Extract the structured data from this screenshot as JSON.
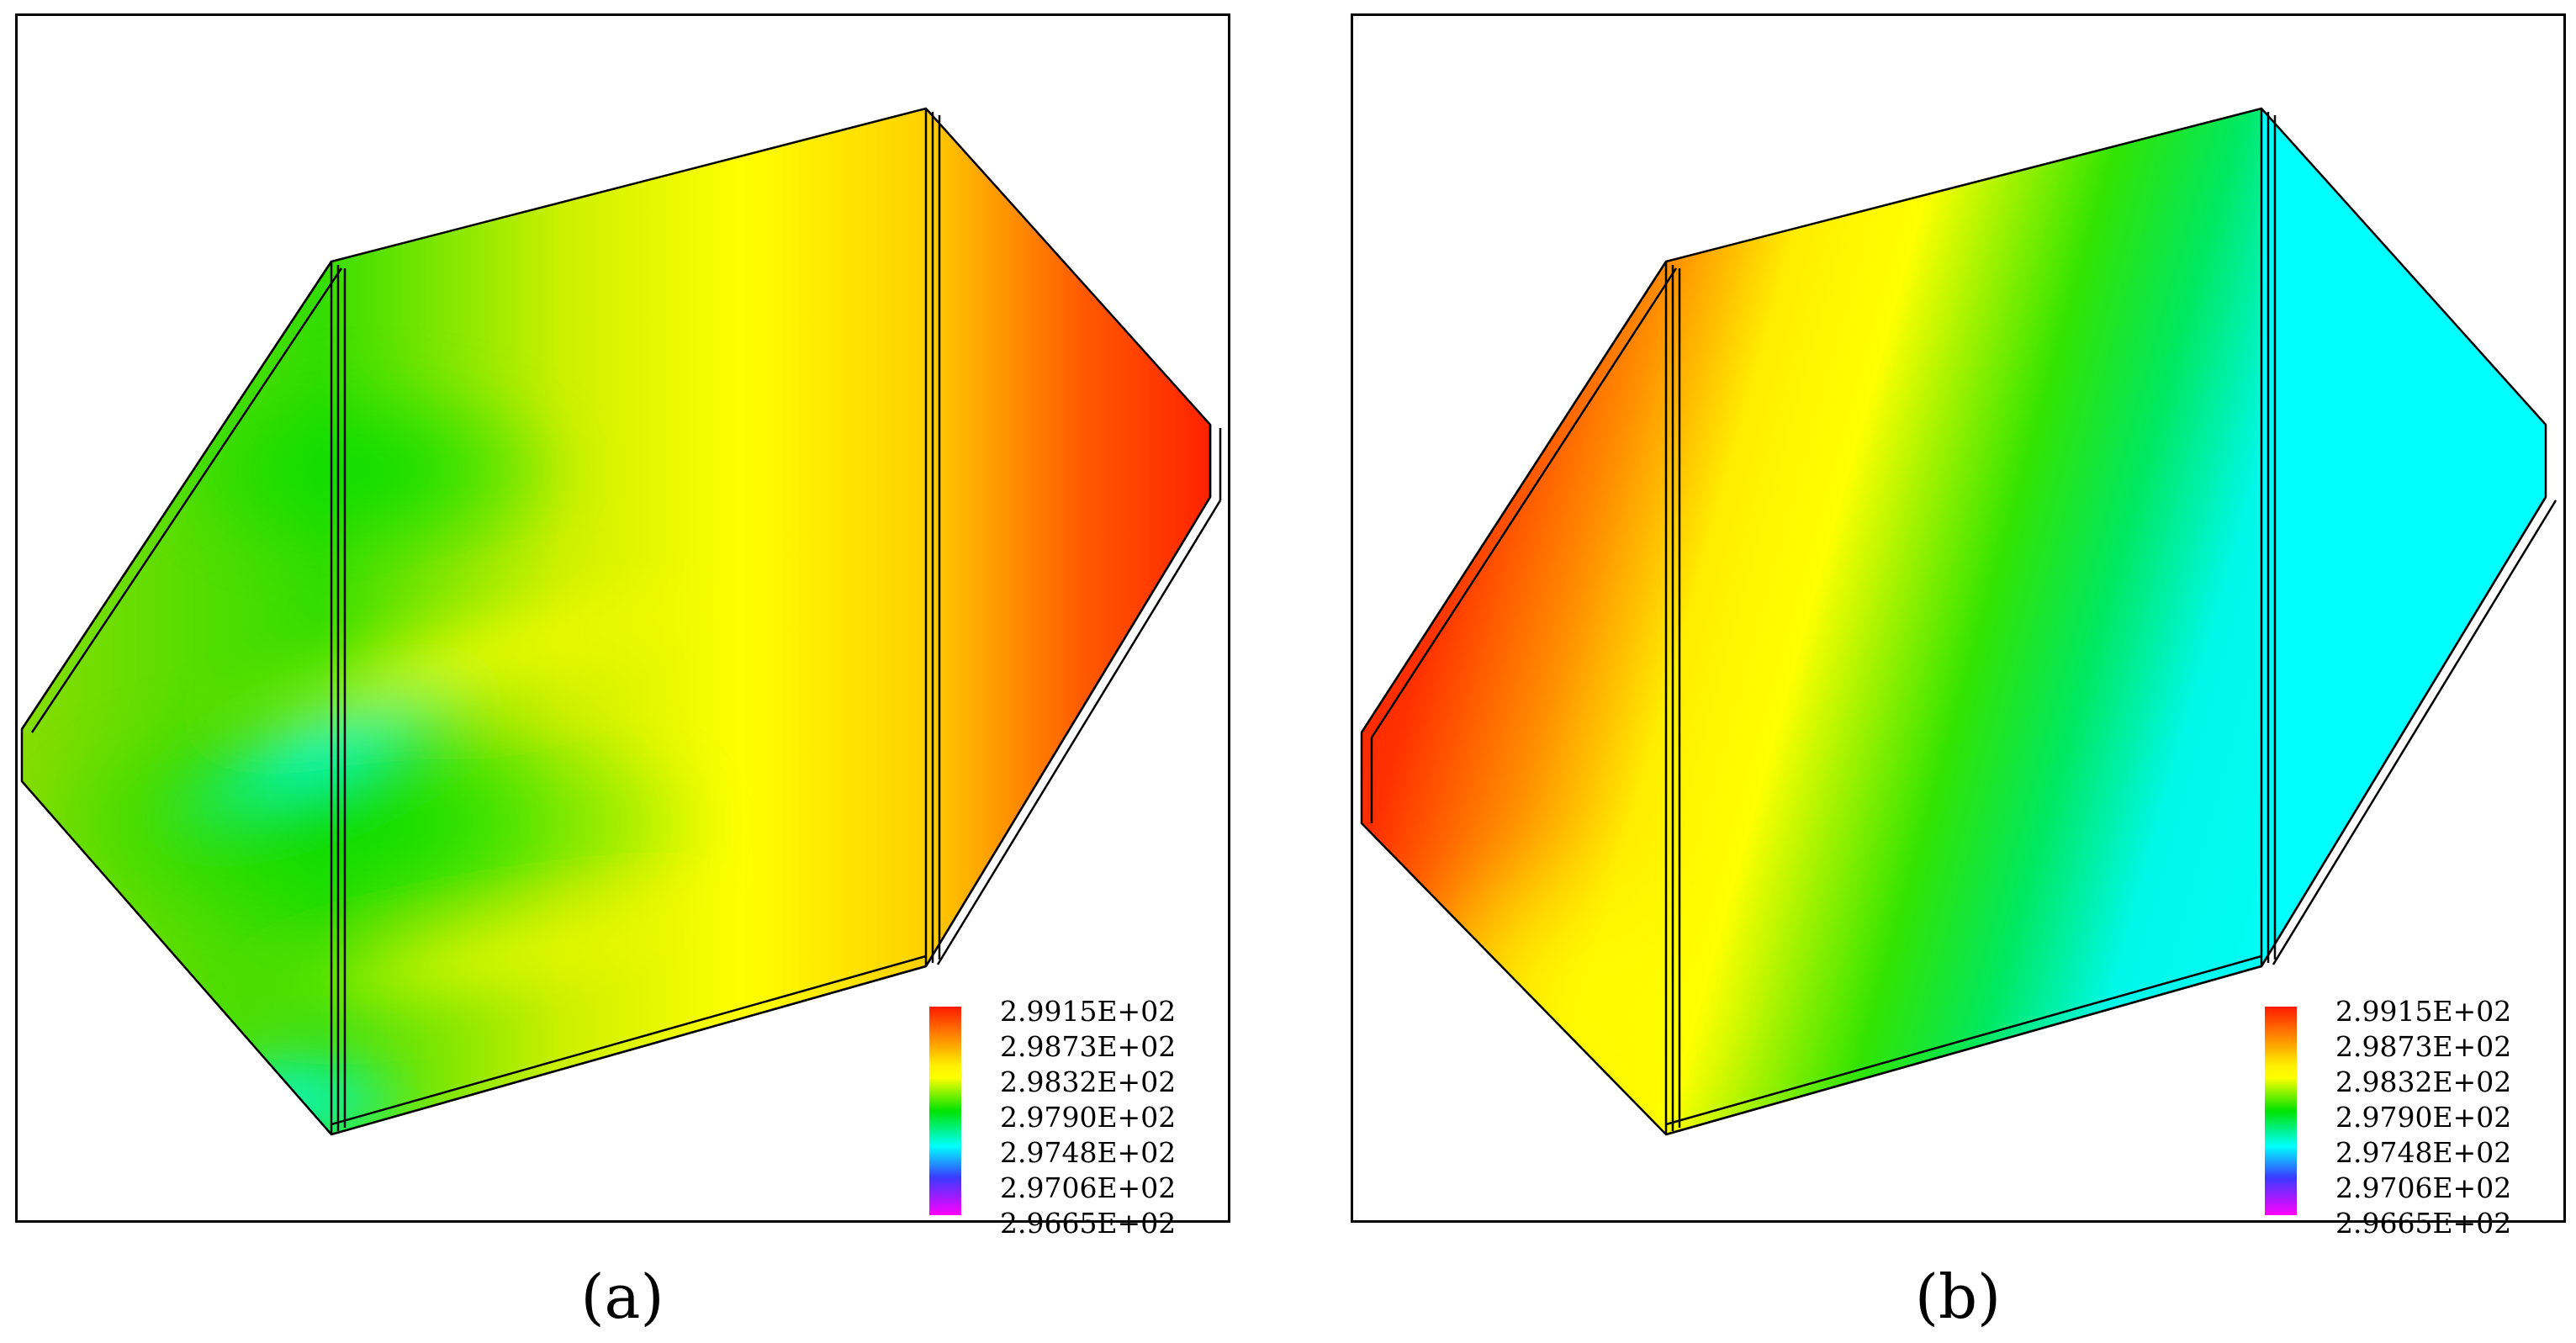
{
  "panels": [
    {
      "id": "a",
      "caption": "(a)",
      "legend": {
        "labels": [
          "2.9915E+02",
          "2.9873E+02",
          "2.9832E+02",
          "2.9790E+02",
          "2.9748E+02",
          "2.9706E+02",
          "2.9665E+02"
        ]
      },
      "colors": {
        "hot": "#ff1a00",
        "warm": "#ffff00",
        "mid": "#00e000",
        "cool": "#00ffff"
      }
    },
    {
      "id": "b",
      "caption": "(b)",
      "legend": {
        "labels": [
          "2.9915E+02",
          "2.9873E+02",
          "2.9832E+02",
          "2.9790E+02",
          "2.9748E+02",
          "2.9706E+02",
          "2.9665E+02"
        ]
      },
      "colors": {
        "hot": "#ff1a00",
        "warm": "#ffff00",
        "mid": "#00e000",
        "cool": "#00ffff"
      }
    }
  ]
}
